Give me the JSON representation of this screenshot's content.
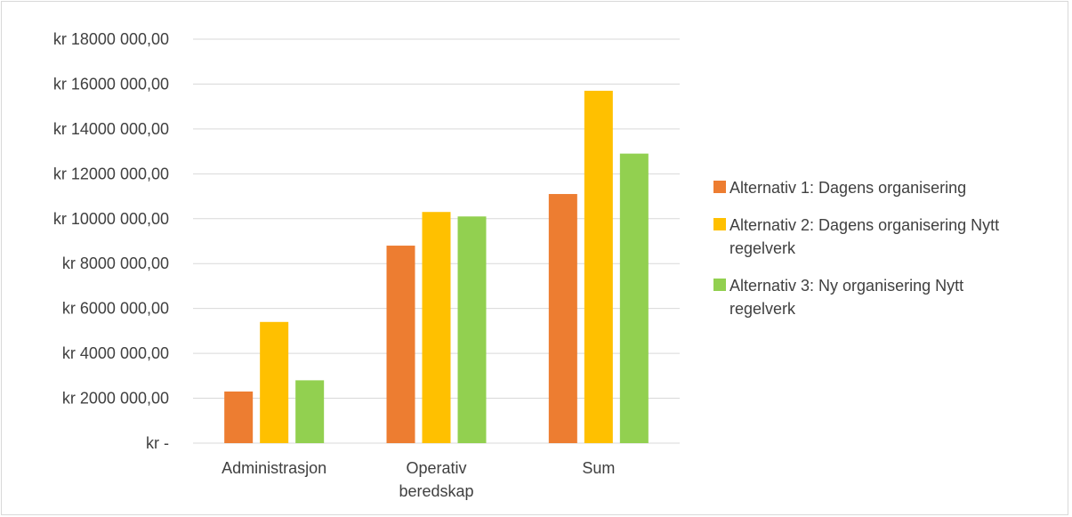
{
  "chart_data": {
    "type": "bar",
    "title": "",
    "xlabel": "",
    "ylabel": "",
    "ylim": [
      0,
      18000000
    ],
    "yticks": [
      0,
      2000000,
      4000000,
      6000000,
      8000000,
      10000000,
      12000000,
      14000000,
      16000000,
      18000000
    ],
    "ytick_labels": [
      "kr -",
      "kr 2000 000,00",
      "kr 4000 000,00",
      "kr 6000 000,00",
      "kr 8000 000,00",
      "kr 10000 000,00",
      "kr 12000 000,00",
      "kr 14000 000,00",
      "kr 16000 000,00",
      "kr 18000 000,00"
    ],
    "categories": [
      [
        "Administrasjon"
      ],
      [
        "Operativ",
        "beredskap"
      ],
      [
        "Sum"
      ]
    ],
    "grid": true,
    "legend_position": "right",
    "series": [
      {
        "name": [
          "Alternativ 1: Dagens organisering"
        ],
        "color": "#ED7D31",
        "values": [
          2300000,
          8800000,
          11100000
        ]
      },
      {
        "name": [
          "Alternativ 2: Dagens organisering Nytt",
          "regelverk"
        ],
        "color": "#FFC000",
        "values": [
          5400000,
          10300000,
          15700000
        ]
      },
      {
        "name": [
          "Alternativ 3: Ny organisering Nytt",
          "regelverk"
        ],
        "color": "#92D050",
        "values": [
          2800000,
          10100000,
          12900000
        ]
      }
    ]
  }
}
